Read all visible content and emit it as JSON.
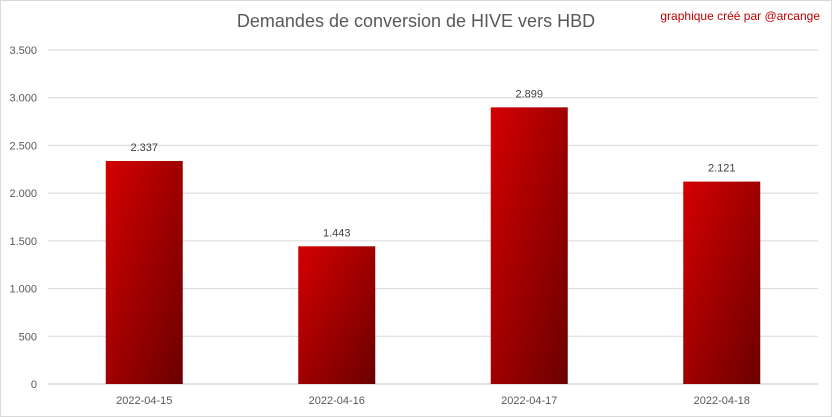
{
  "chart_data": {
    "type": "bar",
    "title": "Demandes de conversion de HIVE vers HBD",
    "credit": "graphique créé par @arcange",
    "categories": [
      "2022-04-15",
      "2022-04-16",
      "2022-04-17",
      "2022-04-18"
    ],
    "values": [
      2337,
      1443,
      2899,
      2121
    ],
    "value_labels": [
      "2.337",
      "1.443",
      "2.899",
      "2.121"
    ],
    "ylim": [
      0,
      3500
    ],
    "yticks": [
      0,
      500,
      1000,
      1500,
      2000,
      2500,
      3000,
      3500
    ],
    "ytick_labels": [
      "0",
      "500",
      "1.000",
      "1.500",
      "2.000",
      "2.500",
      "3.000",
      "3.500"
    ],
    "grid": true,
    "colors": {
      "bar_light": "#d40000",
      "bar_dark": "#6b0000",
      "grid": "#d9d9d9"
    }
  }
}
